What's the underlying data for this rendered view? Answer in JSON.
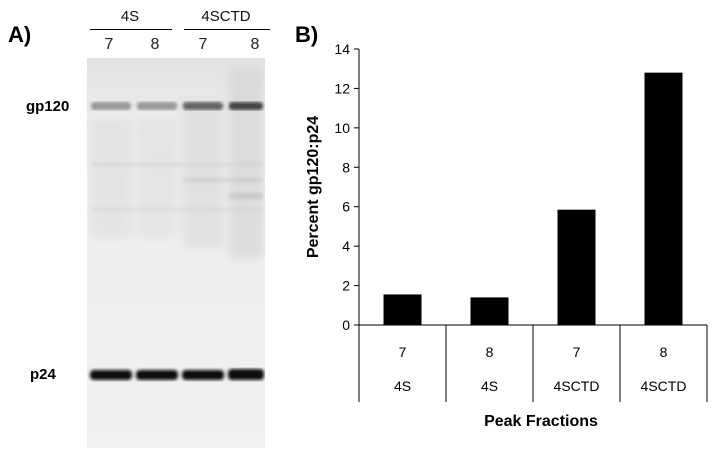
{
  "panel_a": {
    "label": "A)",
    "groups": [
      {
        "label": "4S",
        "lanes": [
          "7",
          "8"
        ]
      },
      {
        "label": "4SCTD",
        "lanes": [
          "7",
          "8"
        ]
      }
    ],
    "band_labels": {
      "upper": "gp120",
      "lower": "p24"
    },
    "gp120_band_intensity": [
      0.35,
      0.35,
      0.65,
      0.85
    ]
  },
  "panel_b": {
    "label": "B)"
  },
  "chart_data": {
    "type": "bar",
    "categories": [
      "7",
      "8",
      "7",
      "8"
    ],
    "group_labels": [
      "4S",
      "4S",
      "4SCTD",
      "4SCTD"
    ],
    "values": [
      1.55,
      1.4,
      5.85,
      12.8
    ],
    "ylim": [
      0,
      14
    ],
    "yticks": [
      "0",
      "2",
      "4",
      "6",
      "8",
      "10",
      "12",
      "14"
    ],
    "ylabel": "Percent gp120:p24",
    "xlabel": "Peak Fractions",
    "bar_color": "#000000",
    "grid": false
  }
}
